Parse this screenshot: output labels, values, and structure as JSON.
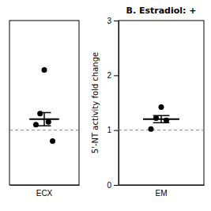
{
  "chart_data": [
    {
      "type": "scatter",
      "categories": [
        "ECX"
      ],
      "values": [
        [
          2.1,
          1.3,
          1.15,
          1.1,
          0.8
        ]
      ],
      "mean": [
        1.2
      ],
      "error": [
        0.12
      ],
      "reference_line": 1.0,
      "color": "#000000",
      "ylim": [
        0,
        3
      ],
      "tick_labels": "x"
    },
    {
      "type": "scatter",
      "title": "B. Estradiol: +",
      "y_label": "5'-NT activity fold change",
      "categories": [
        "EM"
      ],
      "values": [
        [
          1.42,
          1.22,
          1.18,
          1.02
        ]
      ],
      "mean": [
        1.2
      ],
      "error": [
        0.065
      ],
      "reference_line": 1.0,
      "color": "#000000",
      "ylim": [
        0,
        3
      ],
      "yticks": [
        0,
        1,
        2,
        3
      ]
    }
  ]
}
